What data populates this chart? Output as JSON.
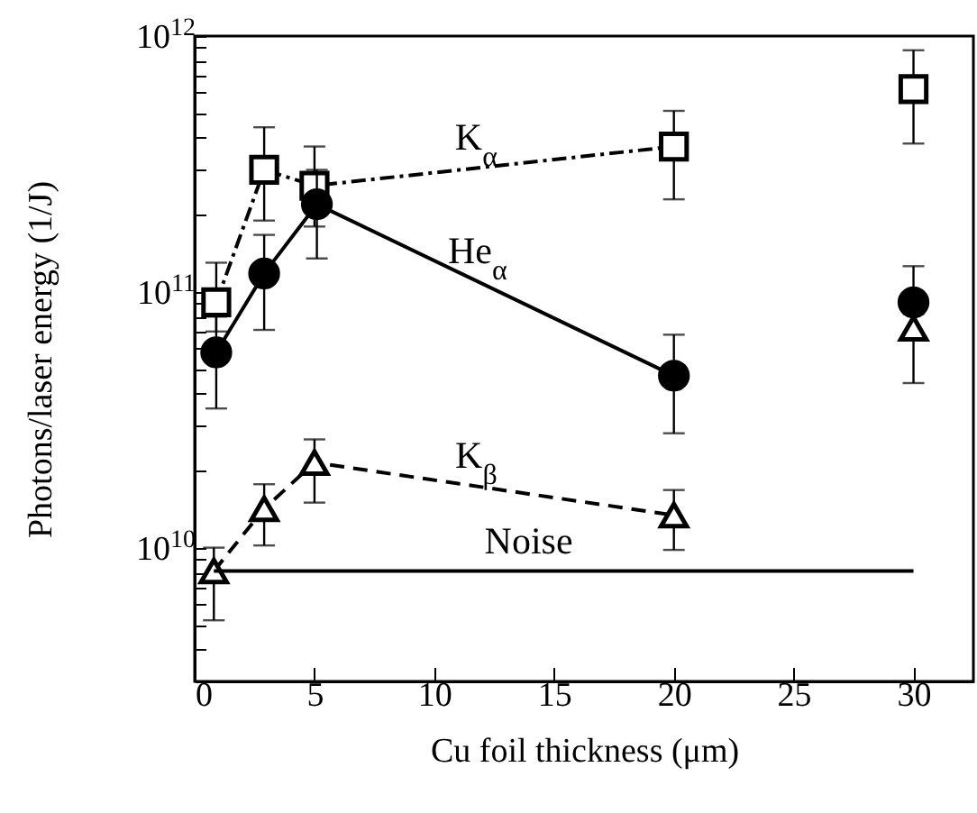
{
  "chart_data": {
    "type": "line",
    "xlabel": "Cu foil thickness (μm)",
    "ylabel": "Photons/laser energy (1/J)",
    "log": "y",
    "xlim": [
      0,
      32.5
    ],
    "xticks": [
      0,
      5,
      10,
      15,
      20,
      25,
      30
    ],
    "ylim": [
      3000000000.0,
      1000000000000.0
    ],
    "yticks": [
      {
        "value": 3000000000.0,
        "label": null
      },
      {
        "value": 4000000000.0,
        "label": null
      },
      {
        "value": 5000000000.0,
        "label": null
      },
      {
        "value": 6000000000.0,
        "label": null
      },
      {
        "value": 7000000000.0,
        "label": null
      },
      {
        "value": 8000000000.0,
        "label": null
      },
      {
        "value": 9000000000.0,
        "label": null
      },
      {
        "value": 10000000000.0,
        "label": "10$^{10}$"
      },
      {
        "value": 20000000000.0,
        "label": null
      },
      {
        "value": 30000000000.0,
        "label": null
      },
      {
        "value": 40000000000.0,
        "label": null
      },
      {
        "value": 50000000000.0,
        "label": null
      },
      {
        "value": 60000000000.0,
        "label": null
      },
      {
        "value": 70000000000.0,
        "label": null
      },
      {
        "value": 80000000000.0,
        "label": null
      },
      {
        "value": 90000000000.0,
        "label": null
      },
      {
        "value": 100000000000.0,
        "label": "10$^{11}$"
      },
      {
        "value": 200000000000.0,
        "label": null
      },
      {
        "value": 300000000000.0,
        "label": null
      },
      {
        "value": 400000000000.0,
        "label": null
      },
      {
        "value": 500000000000.0,
        "label": null
      },
      {
        "value": 600000000000.0,
        "label": null
      },
      {
        "value": 700000000000.0,
        "label": null
      },
      {
        "value": 800000000000.0,
        "label": null
      },
      {
        "value": 900000000000.0,
        "label": null
      },
      {
        "value": 1000000000000.0,
        "label": "10$^{12}$"
      }
    ],
    "grid": false,
    "series": [
      {
        "name": "K$_{α}$",
        "type": "line",
        "marker": "square",
        "line_style": "dotted",
        "color": "#000000",
        "x": [
          0.9,
          2.9,
          5,
          20
        ],
        "values": [
          91000000000.0,
          300000000000.0,
          260000000000.0,
          370000000000.0
        ],
        "errors": [
          [
            70000000000.0,
            130000000000.0
          ],
          [
            190000000000.0,
            440000000000.0
          ],
          [
            180000000000.0,
            370000000000.0
          ],
          [
            230000000000.0,
            510000000000.0
          ]
        ]
      },
      {
        "name": "He$_{α}$",
        "type": "line",
        "marker": "circle",
        "line_style": "solid",
        "color": "#000000",
        "x": [
          0.9,
          2.9,
          5.1,
          20
        ],
        "values": [
          58000000000.0,
          118000000000.0,
          220000000000.0,
          47000000000.0
        ],
        "errors": [
          [
            35000000000.0,
            80000000000.0
          ],
          [
            71000000000.0,
            167000000000.0
          ],
          [
            135000000000.0,
            300000000000.0
          ],
          [
            28000000000.0,
            68000000000.0
          ]
        ]
      },
      {
        "name": "K$_{β}$",
        "type": "line",
        "marker": "triangle",
        "line_style": "dashed",
        "color": "#000000",
        "x": [
          0.8,
          2.9,
          5,
          20
        ],
        "values": [
          8100000000.0,
          14200000000.0,
          21500000000.0,
          13400000000.0
        ],
        "errors": [
          [
            5200000000.0,
            10000000000.0
          ],
          [
            10200000000.0,
            17700000000.0
          ],
          [
            15000000000.0,
            26500000000.0
          ],
          [
            9800000000.0,
            16800000000.0
          ]
        ]
      },
      {
        "name": "Noise",
        "type": "line",
        "marker": "none",
        "line_style": "solid",
        "color": "#000000",
        "x": [
          0.8,
          30
        ],
        "values": [
          8100000000.0,
          8100000000.0
        ]
      },
      {
        "type": "scatter",
        "marker": "square",
        "color": "#000000",
        "x": [
          30
        ],
        "values": [
          620000000000.0
        ],
        "errors": [
          [
            380000000000.0,
            880000000000.0
          ]
        ]
      },
      {
        "type": "scatter",
        "marker": "circle",
        "color": "#000000",
        "x": [
          30
        ],
        "values": [
          91000000000.0
        ],
        "errors": [
          [
            65000000000.0,
            126000000000.0
          ]
        ]
      },
      {
        "type": "scatter",
        "marker": "triangle",
        "color": "#000000",
        "x": [
          30
        ],
        "values": [
          72000000000.0
        ],
        "errors": [
          [
            44000000000.0,
            82000000000.0
          ]
        ]
      }
    ]
  }
}
